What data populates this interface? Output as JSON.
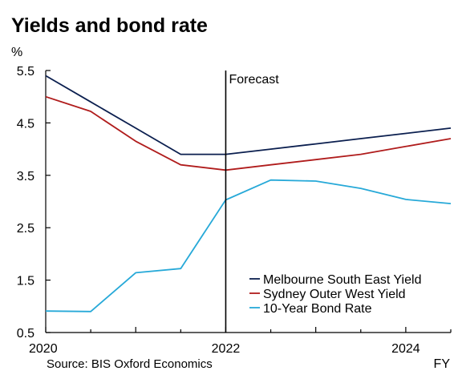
{
  "chart_data": {
    "type": "line",
    "title": "Yields and bond rate",
    "ylabel": "%",
    "xlabel": "FY",
    "ylim": [
      0.5,
      5.5
    ],
    "xlim": [
      2020,
      2024.5
    ],
    "yticks": [
      0.5,
      1.5,
      2.5,
      3.5,
      4.5,
      5.5
    ],
    "ytick_labels": [
      "0.5",
      "1.5",
      "2.5",
      "3.5",
      "4.5",
      "5.5"
    ],
    "xticks": [
      2020,
      2022,
      2024
    ],
    "xtick_labels": [
      "2020",
      "2022",
      "2024"
    ],
    "grid": false,
    "legend_position": "bottom-right",
    "forecast_x": 2022,
    "forecast_label": "Forecast",
    "source": "Source: BIS Oxford Economics",
    "series": [
      {
        "name": "Melbourne South East Yield",
        "color": "#0b1f4f",
        "x": [
          2020,
          2020.5,
          2021,
          2021.5,
          2022,
          2022.5,
          2023,
          2023.5,
          2024,
          2024.5
        ],
        "values": [
          5.4,
          4.9,
          4.4,
          3.9,
          3.9,
          4.0,
          4.1,
          4.2,
          4.3,
          4.4
        ]
      },
      {
        "name": "Sydney Outer West Yield",
        "color": "#b01c1c",
        "x": [
          2020,
          2020.5,
          2021,
          2021.5,
          2022,
          2022.5,
          2023,
          2023.5,
          2024,
          2024.5
        ],
        "values": [
          5.0,
          4.72,
          4.15,
          3.7,
          3.6,
          3.7,
          3.8,
          3.9,
          4.05,
          4.2
        ]
      },
      {
        "name": "10-Year Bond Rate",
        "color": "#27a9d8",
        "x": [
          2020,
          2020.5,
          2021,
          2021.5,
          2022,
          2022.5,
          2023,
          2023.5,
          2024,
          2024.5
        ],
        "values": [
          0.91,
          0.9,
          1.64,
          1.72,
          3.03,
          3.41,
          3.39,
          3.25,
          3.04,
          2.96
        ]
      }
    ]
  }
}
